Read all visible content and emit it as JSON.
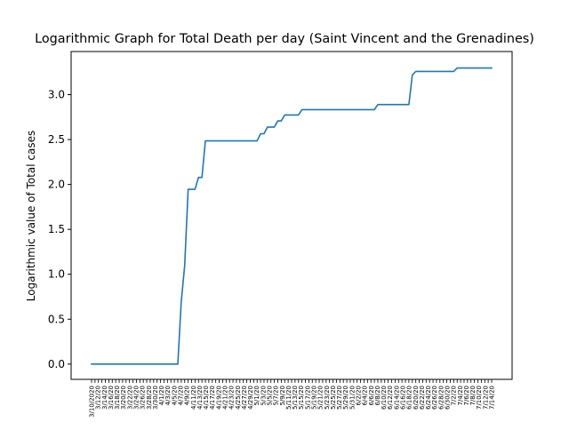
{
  "chart_data": {
    "type": "line",
    "title": "Logarithmic Graph for Total Death per day (Saint Vincent and the Grenadines)",
    "xlabel": "",
    "ylabel": "Logarithmic value of Total cases",
    "ylim": [
      -0.17,
      3.48
    ],
    "yticks": [
      "0.0",
      "0.5",
      "1.0",
      "1.5",
      "2.0",
      "2.5",
      "3.0"
    ],
    "grid": false,
    "line_color": "#1f77b4",
    "series": [
      {
        "values": [
          0,
          0,
          0,
          0,
          0,
          0,
          0,
          0,
          0,
          0,
          0,
          0,
          0,
          0,
          0,
          0,
          0,
          0,
          0,
          0,
          0,
          0,
          0,
          0,
          0,
          0,
          0.693,
          1.099,
          1.946,
          1.946,
          1.946,
          2.079,
          2.079,
          2.485,
          2.485,
          2.485,
          2.485,
          2.485,
          2.485,
          2.485,
          2.485,
          2.485,
          2.485,
          2.485,
          2.485,
          2.485,
          2.485,
          2.485,
          2.485,
          2.565,
          2.565,
          2.639,
          2.639,
          2.639,
          2.708,
          2.708,
          2.773,
          2.773,
          2.773,
          2.773,
          2.773,
          2.833,
          2.833,
          2.833,
          2.833,
          2.833,
          2.833,
          2.833,
          2.833,
          2.833,
          2.833,
          2.833,
          2.833,
          2.833,
          2.833,
          2.833,
          2.833,
          2.833,
          2.833,
          2.833,
          2.833,
          2.833,
          2.833,
          2.89,
          2.89,
          2.89,
          2.89,
          2.89,
          2.89,
          2.89,
          2.89,
          2.89,
          2.89,
          3.219,
          3.258,
          3.258,
          3.258,
          3.258,
          3.258,
          3.258,
          3.258,
          3.258,
          3.258,
          3.258,
          3.258,
          3.258,
          3.296,
          3.296,
          3.296,
          3.296,
          3.296,
          3.296,
          3.296,
          3.296,
          3.296,
          3.296,
          3.296
        ]
      }
    ],
    "x_tick_labels": [
      "3/10/2020",
      "3/12/20",
      "3/14/20",
      "3/16/20",
      "3/18/20",
      "3/20/20",
      "3/22/20",
      "3/24/20",
      "3/26/20",
      "3/28/20",
      "3/30/20",
      "4/1/20",
      "4/3/20",
      "4/5/20",
      "4/7/20",
      "4/9/20",
      "4/11/20",
      "4/13/20",
      "4/15/20",
      "4/17/20",
      "4/19/20",
      "4/21/20",
      "4/23/20",
      "4/25/20",
      "4/27/20",
      "4/29/20",
      "5/1/20",
      "5/3/20",
      "5/5/20",
      "5/7/20",
      "5/9/20",
      "5/11/20",
      "5/13/20",
      "5/15/20",
      "5/17/20",
      "5/19/20",
      "5/21/20",
      "5/23/20",
      "5/25/20",
      "5/27/20",
      "5/29/20",
      "5/31/20",
      "6/2/20",
      "6/4/20",
      "6/6/20",
      "6/8/20",
      "6/10/20",
      "6/12/20",
      "6/14/20",
      "6/16/20",
      "6/18/20",
      "6/20/20",
      "6/22/20",
      "6/24/20",
      "6/26/20",
      "6/28/20",
      "6/30/20",
      "7/2/20",
      "7/4/20",
      "7/6/20",
      "7/8/20",
      "7/10/20",
      "7/12/20",
      "7/14/20"
    ]
  }
}
